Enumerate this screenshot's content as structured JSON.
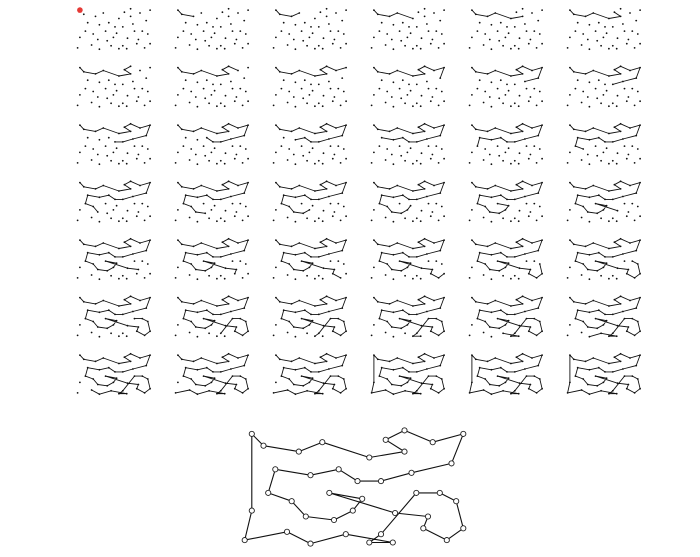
{
  "chart_data": {
    "type": "diagram",
    "description_visible_text": "",
    "grid": {
      "rows": 7,
      "cols": 6
    },
    "colors": {
      "line": "#111111",
      "dot": "#111111",
      "start": "#e53935",
      "node_fill": "#ffffff"
    },
    "points": [
      [
        0.05,
        0.05
      ],
      [
        0.62,
        0.1
      ],
      [
        0.7,
        0.02
      ],
      [
        0.95,
        0.05
      ],
      [
        0.82,
        0.12
      ],
      [
        0.9,
        0.3
      ],
      [
        0.73,
        0.38
      ],
      [
        0.75,
        0.55
      ],
      [
        0.66,
        0.72
      ],
      [
        0.6,
        0.9
      ],
      [
        0.52,
        0.6
      ],
      [
        0.48,
        0.7
      ],
      [
        0.38,
        0.55
      ],
      [
        0.42,
        0.35
      ],
      [
        0.3,
        0.4
      ],
      [
        0.25,
        0.2
      ],
      [
        0.15,
        0.35
      ],
      [
        0.22,
        0.62
      ],
      [
        0.05,
        0.7
      ],
      [
        0.02,
        0.95
      ],
      [
        0.2,
        0.88
      ],
      [
        0.3,
        0.98
      ],
      [
        0.45,
        0.9
      ],
      [
        0.55,
        0.97
      ],
      [
        0.65,
        0.97
      ],
      [
        0.8,
        0.75
      ],
      [
        0.88,
        0.95
      ],
      [
        0.85,
        0.55
      ],
      [
        0.7,
        0.2
      ],
      [
        0.6,
        0.45
      ],
      [
        0.35,
        0.12
      ],
      [
        0.1,
        0.15
      ],
      [
        0.55,
        0.25
      ],
      [
        0.4,
        0.78
      ],
      [
        0.78,
        0.85
      ],
      [
        0.92,
        0.62
      ],
      [
        0.12,
        0.55
      ],
      [
        0.28,
        0.75
      ],
      [
        0.5,
        0.45
      ],
      [
        0.95,
        0.85
      ]
    ],
    "start_index": 0,
    "panel_tour_lengths": [
      1,
      3,
      4,
      5,
      6,
      7,
      8,
      9,
      10,
      11,
      12,
      13,
      14,
      15,
      16,
      17,
      18,
      19,
      20,
      21,
      22,
      23,
      24,
      25,
      26,
      27,
      28,
      29,
      30,
      31,
      32,
      33,
      34,
      35,
      36,
      37,
      38,
      39,
      39,
      40,
      40,
      40
    ]
  }
}
